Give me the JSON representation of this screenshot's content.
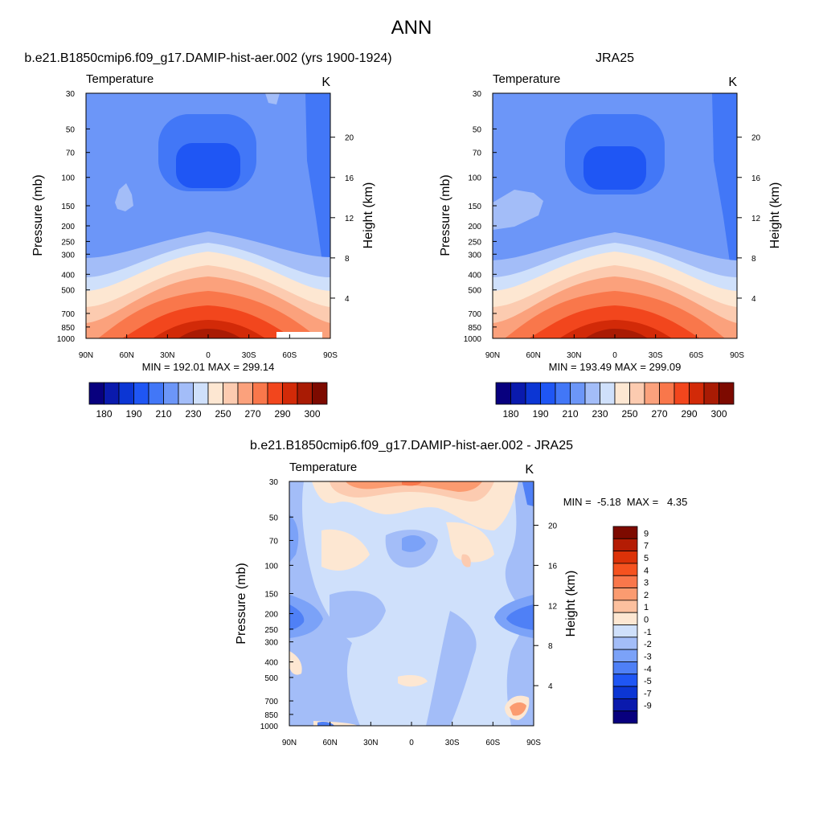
{
  "figure": {
    "title": "ANN"
  },
  "chart_data": [
    {
      "type": "contour",
      "title": "b.e21.B1850cmip6.f09_g17.DAMIP-hist-aer.002 (yrs 1900-1924)",
      "left_string": "Temperature",
      "right_string": "K",
      "xlabel": "",
      "ylabel": "Pressure (mb)",
      "ylabel_right": "Height (km)",
      "x_ticks": [
        "90N",
        "60N",
        "30N",
        "0",
        "30S",
        "60S",
        "90S"
      ],
      "y_ticks": [
        "30",
        "50",
        "70",
        "100",
        "150",
        "200",
        "250",
        "300",
        "400",
        "500",
        "700",
        "850",
        "1000"
      ],
      "right_ticks": [
        "20",
        "16",
        "12",
        "8",
        "4"
      ],
      "ylim": [
        1000,
        30
      ],
      "y_scale": "log",
      "min_max_text": "MIN = 192.01  MAX = 299.14",
      "colorbar_labels": [
        "180",
        "190",
        "210",
        "230",
        "250",
        "270",
        "290",
        "300"
      ],
      "colorbar_orientation": "horizontal",
      "fields": {
        "cold_core_min": 192.01,
        "warm_surface_max": 299.14
      }
    },
    {
      "type": "contour",
      "title": "JRA25",
      "left_string": "Temperature",
      "right_string": "K",
      "xlabel": "",
      "ylabel": "Pressure (mb)",
      "ylabel_right": "Height (km)",
      "x_ticks": [
        "90N",
        "60N",
        "30N",
        "0",
        "30S",
        "60S",
        "90S"
      ],
      "y_ticks": [
        "30",
        "50",
        "70",
        "100",
        "150",
        "200",
        "250",
        "300",
        "400",
        "500",
        "700",
        "850",
        "1000"
      ],
      "right_ticks": [
        "20",
        "16",
        "12",
        "8",
        "4"
      ],
      "ylim": [
        1000,
        30
      ],
      "y_scale": "log",
      "min_max_text": "MIN = 193.49  MAX = 299.09",
      "colorbar_labels": [
        "180",
        "190",
        "210",
        "230",
        "250",
        "270",
        "290",
        "300"
      ],
      "colorbar_orientation": "horizontal",
      "fields": {
        "cold_core_min": 193.49,
        "warm_surface_max": 299.09
      }
    },
    {
      "type": "contour",
      "title": "b.e21.B1850cmip6.f09_g17.DAMIP-hist-aer.002 - JRA25",
      "left_string": "Temperature",
      "right_string": "K",
      "xlabel": "",
      "ylabel": "Pressure (mb)",
      "ylabel_right": "Height (km)",
      "x_ticks": [
        "90N",
        "60N",
        "30N",
        "0",
        "30S",
        "60S",
        "90S"
      ],
      "y_ticks": [
        "30",
        "50",
        "70",
        "100",
        "150",
        "200",
        "250",
        "300",
        "400",
        "500",
        "700",
        "850",
        "1000"
      ],
      "right_ticks": [
        "20",
        "16",
        "12",
        "8",
        "4"
      ],
      "ylim": [
        1000,
        30
      ],
      "y_scale": "log",
      "min_max_text": "MIN =  -5.18  MAX =   4.35",
      "colorbar_labels": [
        "9",
        "7",
        "5",
        "4",
        "3",
        "2",
        "1",
        "0",
        "-1",
        "-2",
        "-3",
        "-4",
        "-5",
        "-7",
        "-9"
      ],
      "colorbar_orientation": "vertical",
      "fields": {
        "min": -5.18,
        "max": 4.35
      }
    }
  ],
  "colors": {
    "abs_palette": [
      "#08007e",
      "#0a1aad",
      "#0c36d4",
      "#1f56f4",
      "#4277f7",
      "#6c96f8",
      "#a3bdf8",
      "#cfe0fb",
      "#fde7d2",
      "#fccbb0",
      "#fba17c",
      "#f9774b",
      "#f2461d",
      "#d22a08",
      "#a91b04",
      "#7d0a00"
    ],
    "diff_palette": [
      "#7d0a00",
      "#b41c04",
      "#dc3208",
      "#f5521f",
      "#f9774b",
      "#fb9b70",
      "#fcc09e",
      "#fde7d2",
      "#cfe0fb",
      "#a3bdf8",
      "#7ba2f8",
      "#4f80f6",
      "#1f56f4",
      "#0c36d4",
      "#0a1aad",
      "#08007e"
    ]
  }
}
